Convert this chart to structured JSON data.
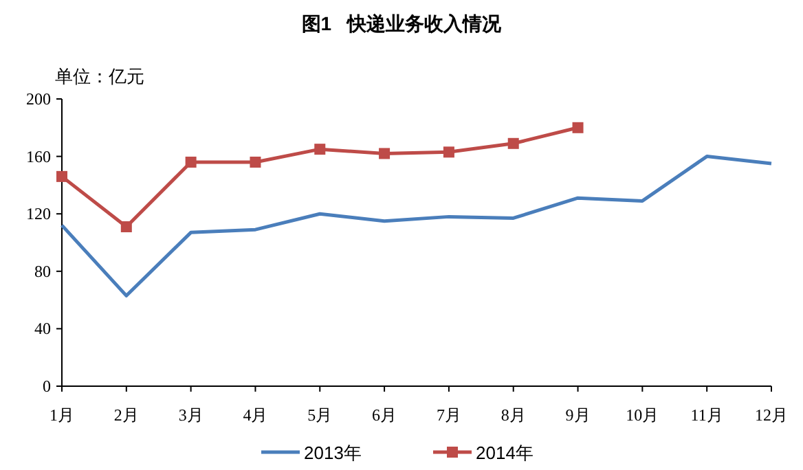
{
  "chart_data": {
    "type": "line",
    "title": "图1   快递业务收入情况",
    "ylabel": "单位：亿元",
    "categories": [
      "1月",
      "2月",
      "3月",
      "4月",
      "5月",
      "6月",
      "7月",
      "8月",
      "9月",
      "10月",
      "11月",
      "12月"
    ],
    "series": [
      {
        "name": "2013年",
        "color": "#4a7ebb",
        "marker": "none",
        "values": [
          112,
          63,
          107,
          109,
          120,
          115,
          118,
          117,
          131,
          129,
          160,
          155
        ]
      },
      {
        "name": "2014年",
        "color": "#be4b48",
        "marker": "square",
        "values": [
          146,
          111,
          156,
          156,
          165,
          162,
          163,
          169,
          180,
          null,
          null,
          null
        ]
      }
    ],
    "ylim": [
      0,
      200
    ],
    "yticks": [
      0,
      40,
      80,
      120,
      160,
      200
    ],
    "legend": "bottom"
  }
}
